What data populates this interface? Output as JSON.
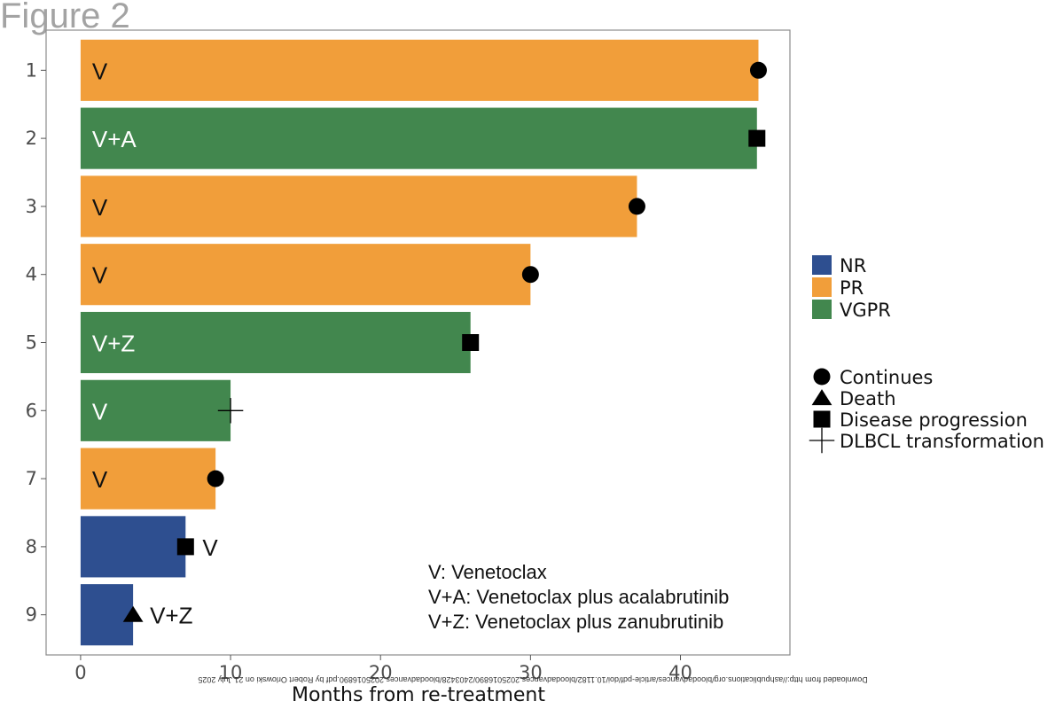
{
  "figure_title": "Figure 2",
  "watermark": "Downloaded from http://ashpublications.org/bloodadvances/article-pdf/doi/10.1182/bloodadvances.2025016890/2403428/bloodadvances.2025016890.pdf by Robert Orlowski on 21 July 2025",
  "colors": {
    "NR": "#2e4f90",
    "PR": "#f19e3a",
    "VGPR": "#42874e",
    "marker": "#000000",
    "frame": "#8c8c8c",
    "tick_text": "#4d4d4d"
  },
  "chart_data": {
    "type": "bar",
    "orientation": "horizontal",
    "title": "Figure 2",
    "xlabel": "Months from re-treatment",
    "ylabel": "",
    "xlim": [
      -2.3,
      47.3
    ],
    "xticks": [
      0,
      10,
      20,
      30,
      40
    ],
    "categories": [
      "1",
      "2",
      "3",
      "4",
      "5",
      "6",
      "7",
      "8",
      "9"
    ],
    "values": [
      45.2,
      45.1,
      37.1,
      30.0,
      26.0,
      10.0,
      9.0,
      7.0,
      3.5
    ],
    "response": [
      "PR",
      "VGPR",
      "PR",
      "PR",
      "VGPR",
      "VGPR",
      "PR",
      "NR",
      "NR"
    ],
    "regimen": [
      "V",
      "V+A",
      "V",
      "V",
      "V+Z",
      "V",
      "V",
      "V",
      "V+Z"
    ],
    "outcome_markers": [
      {
        "x": 45.2,
        "outcome": "Continues"
      },
      {
        "x": 45.1,
        "outcome": "Disease progression"
      },
      {
        "x": 37.1,
        "outcome": "Continues"
      },
      {
        "x": 30.0,
        "outcome": "Continues"
      },
      {
        "x": 26.0,
        "outcome": "Disease progression"
      },
      {
        "x": 10.0,
        "outcome": "DLBCL transformation"
      },
      {
        "x": 9.0,
        "outcome": "Continues"
      },
      {
        "x": 7.0,
        "outcome": "Disease progression"
      },
      {
        "x": 3.5,
        "outcome": "Death"
      }
    ],
    "legend_response": {
      "placement": "right",
      "entries": [
        "NR",
        "PR",
        "VGPR"
      ]
    },
    "legend_outcome": {
      "placement": "right",
      "entries": [
        {
          "label": "Continues",
          "shape": "circle"
        },
        {
          "label": "Death",
          "shape": "triangle"
        },
        {
          "label": "Disease progression",
          "shape": "square"
        },
        {
          "label": "DLBCL transformation",
          "shape": "plus"
        }
      ]
    },
    "annotations": [
      "V: Venetoclax",
      "V+A: Venetoclax plus acalabrutinib",
      "V+Z: Venetoclax plus zanubrutinib"
    ],
    "grid": false
  }
}
